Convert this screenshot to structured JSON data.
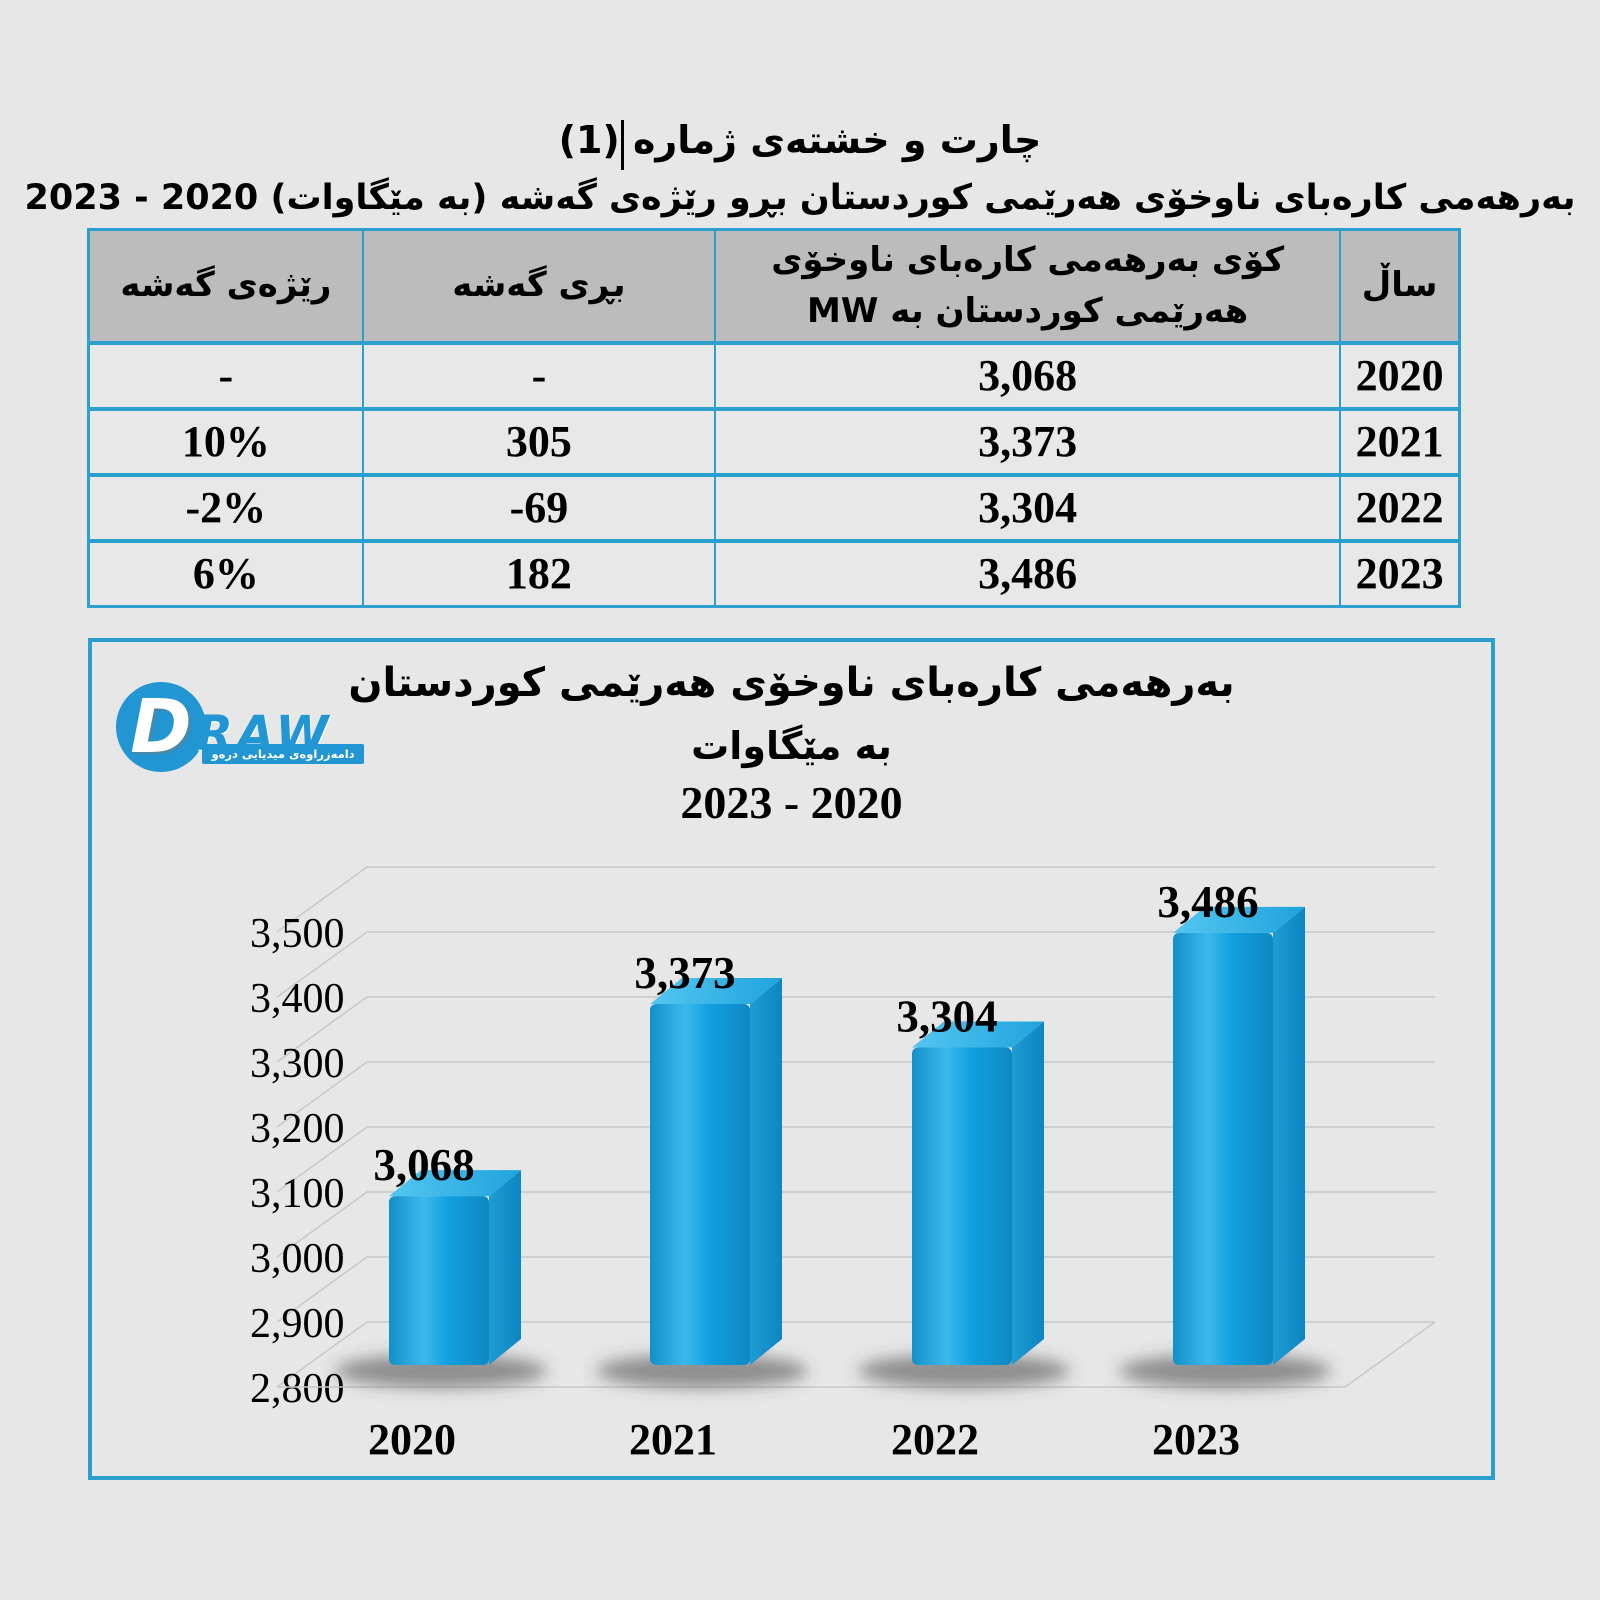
{
  "page": {
    "title": "چارت و خشتەی ژمارە (1)",
    "subtitle": "بەرهەمی کارەبای ناوخۆی هەرێمی کوردستان بڕو رێژەی گەشە (بە مێگاوات) 2020 - 2023"
  },
  "table": {
    "headers": [
      "ساڵ",
      "کۆی بەرهەمی کارەبای ناوخۆی هەرێمی کوردستان بە MW",
      "بڕی گەشە",
      "رێژەی گەشە"
    ],
    "rows": [
      [
        "2020",
        "3,068",
        "-",
        "-"
      ],
      [
        "2021",
        "3,373",
        "305",
        "10%"
      ],
      [
        "2022",
        "3,304",
        "-69",
        "-2%"
      ],
      [
        "2023",
        "3,486",
        "182",
        "6%"
      ]
    ]
  },
  "logo": {
    "letter": "D",
    "text": "RAW",
    "tagline": "دامەزراوەی میدیایی درەو"
  },
  "chart": {
    "title_line1": "بەرهەمی کارەبای ناوخۆی هەرێمی کوردستان",
    "title_line2": "بە مێگاوات",
    "title_line3": "2020 - 2023"
  },
  "chart_data": {
    "type": "bar",
    "style": "3d-column",
    "title": "بەرهەمی کارەبای ناوخۆی هەرێمی کوردستان بە مێگاوات 2020 - 2023",
    "categories": [
      "2020",
      "2021",
      "2022",
      "2023"
    ],
    "values": [
      3068,
      3373,
      3304,
      3486
    ],
    "value_labels": [
      "3,068",
      "3,373",
      "3,304",
      "3,486"
    ],
    "xlabel": "",
    "ylabel": "",
    "ylim": [
      2800,
      3500
    ],
    "ytick_step": 100,
    "ytick_labels": [
      "2,800",
      "2,900",
      "3,000",
      "3,100",
      "3,200",
      "3,300",
      "3,400",
      "3,500"
    ],
    "grid": true,
    "legend": false
  },
  "colors": {
    "page_bg": "#e7e7e7",
    "accent_border": "#2b9fcd",
    "header_bg": "#bcbcbc",
    "row_bg": "#e8e8e8",
    "gridline": "#c9c9c9",
    "bar_front": "#119ee0",
    "bar_front_highlight": "#3cb9ec",
    "bar_top": "#29ade3",
    "bar_side": "#0d85c0",
    "logo_blue": "#2296d2",
    "text": "#000000"
  }
}
